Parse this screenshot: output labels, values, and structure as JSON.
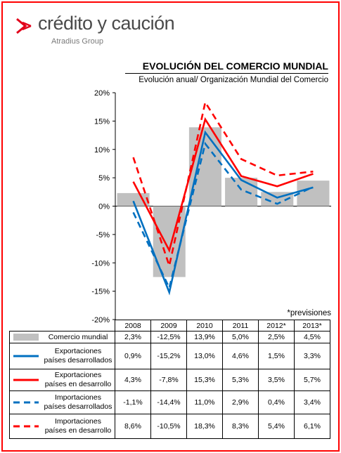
{
  "brand": {
    "name": "crédito y caución",
    "subtitle": "Atradius Group",
    "accent_color": "#e2001a",
    "logo_icon": "brand-arrow-icon"
  },
  "header": {
    "title": "EVOLUCIÓN DEL COMERCIO MUNDIAL",
    "subtitle": "Evolución anual/ Organización Mundial del Comercio"
  },
  "footnote": "*previsiones",
  "frame_color": "#ff0000",
  "chart_data": {
    "type": "bar",
    "categories": [
      "2008",
      "2009",
      "2010",
      "2011",
      "2012*",
      "2013*"
    ],
    "ylim": [
      -20,
      20
    ],
    "y_ticks": [
      -20,
      -15,
      -10,
      -5,
      0,
      5,
      10,
      15,
      20
    ],
    "y_tick_labels": [
      "-20%",
      "-15%",
      "-10%",
      "-5%",
      "0%",
      "5%",
      "10%",
      "15%",
      "20%"
    ],
    "grid": false,
    "series": [
      {
        "name": "Comercio mundial",
        "type": "bar",
        "color": "#c0c0c0",
        "style": "bar",
        "values": [
          2.3,
          -12.5,
          13.9,
          5.0,
          2.5,
          4.5
        ],
        "labels": [
          "2,3%",
          "-12,5%",
          "13,9%",
          "5,0%",
          "2,5%",
          "4,5%"
        ]
      },
      {
        "name": "Exportaciones países desarrollados",
        "type": "line",
        "color": "#0070c0",
        "style": "solid",
        "values": [
          0.9,
          -15.2,
          13.0,
          4.6,
          1.5,
          3.3
        ],
        "labels": [
          "0,9%",
          "-15,2%",
          "13,0%",
          "4,6%",
          "1,5%",
          "3,3%"
        ]
      },
      {
        "name": "Exportaciones países en desarrollo",
        "type": "line",
        "color": "#ff0000",
        "style": "solid",
        "values": [
          4.3,
          -7.8,
          15.3,
          5.3,
          3.5,
          5.7
        ],
        "labels": [
          "4,3%",
          "-7,8%",
          "15,3%",
          "5,3%",
          "3,5%",
          "5,7%"
        ]
      },
      {
        "name": "Importaciones países desarrollados",
        "type": "line",
        "color": "#0070c0",
        "style": "dashed",
        "values": [
          -1.1,
          -14.4,
          11.0,
          2.9,
          0.4,
          3.4
        ],
        "labels": [
          "-1,1%",
          "-14,4%",
          "11,0%",
          "2,9%",
          "0,4%",
          "3,4%"
        ]
      },
      {
        "name": "Importaciones países en desarrollo",
        "type": "line",
        "color": "#ff0000",
        "style": "dashed",
        "values": [
          8.6,
          -10.5,
          18.3,
          8.3,
          5.4,
          6.1
        ],
        "labels": [
          "8,6%",
          "-10,5%",
          "18,3%",
          "8,3%",
          "5,4%",
          "6,1%"
        ]
      }
    ],
    "table": {
      "row_labels": [
        [
          "Comercio mundial"
        ],
        [
          "Exportaciones",
          "países desarrollados"
        ],
        [
          "Exportaciones",
          "países en desarrollo"
        ],
        [
          "Importaciones",
          "países desarrollados"
        ],
        [
          "Importaciones",
          "países en desarrollo"
        ]
      ]
    }
  }
}
